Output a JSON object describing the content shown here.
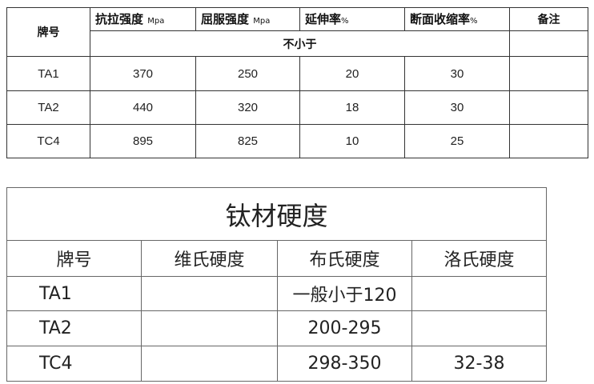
{
  "table1": {
    "headers": {
      "grade": "牌号",
      "tensile": "抗拉强度",
      "tensile_unit": "Mpa",
      "yield": "屈服强度",
      "yield_unit": "Mpa",
      "elong": "延伸率",
      "elong_unit": "%",
      "reduction": "断面收缩率",
      "reduction_unit": "%",
      "remark": "备注",
      "min_note": "不小于"
    },
    "rows": [
      {
        "grade": "TA1",
        "tensile": "370",
        "yield": "250",
        "elong": "20",
        "reduction": "30"
      },
      {
        "grade": "TA2",
        "tensile": "440",
        "yield": "320",
        "elong": "18",
        "reduction": "30"
      },
      {
        "grade": "TC4",
        "tensile": "895",
        "yield": "825",
        "elong": "10",
        "reduction": "25"
      }
    ]
  },
  "table2": {
    "title": "钛材硬度",
    "headers": [
      "牌号",
      "维氏硬度",
      "布氏硬度",
      "洛氏硬度"
    ],
    "rows": [
      [
        "TA1",
        "",
        "一般小于120",
        ""
      ],
      [
        "TA2",
        "",
        "200-295",
        ""
      ],
      [
        "TC4",
        "",
        "298-350",
        "32-38"
      ]
    ]
  }
}
